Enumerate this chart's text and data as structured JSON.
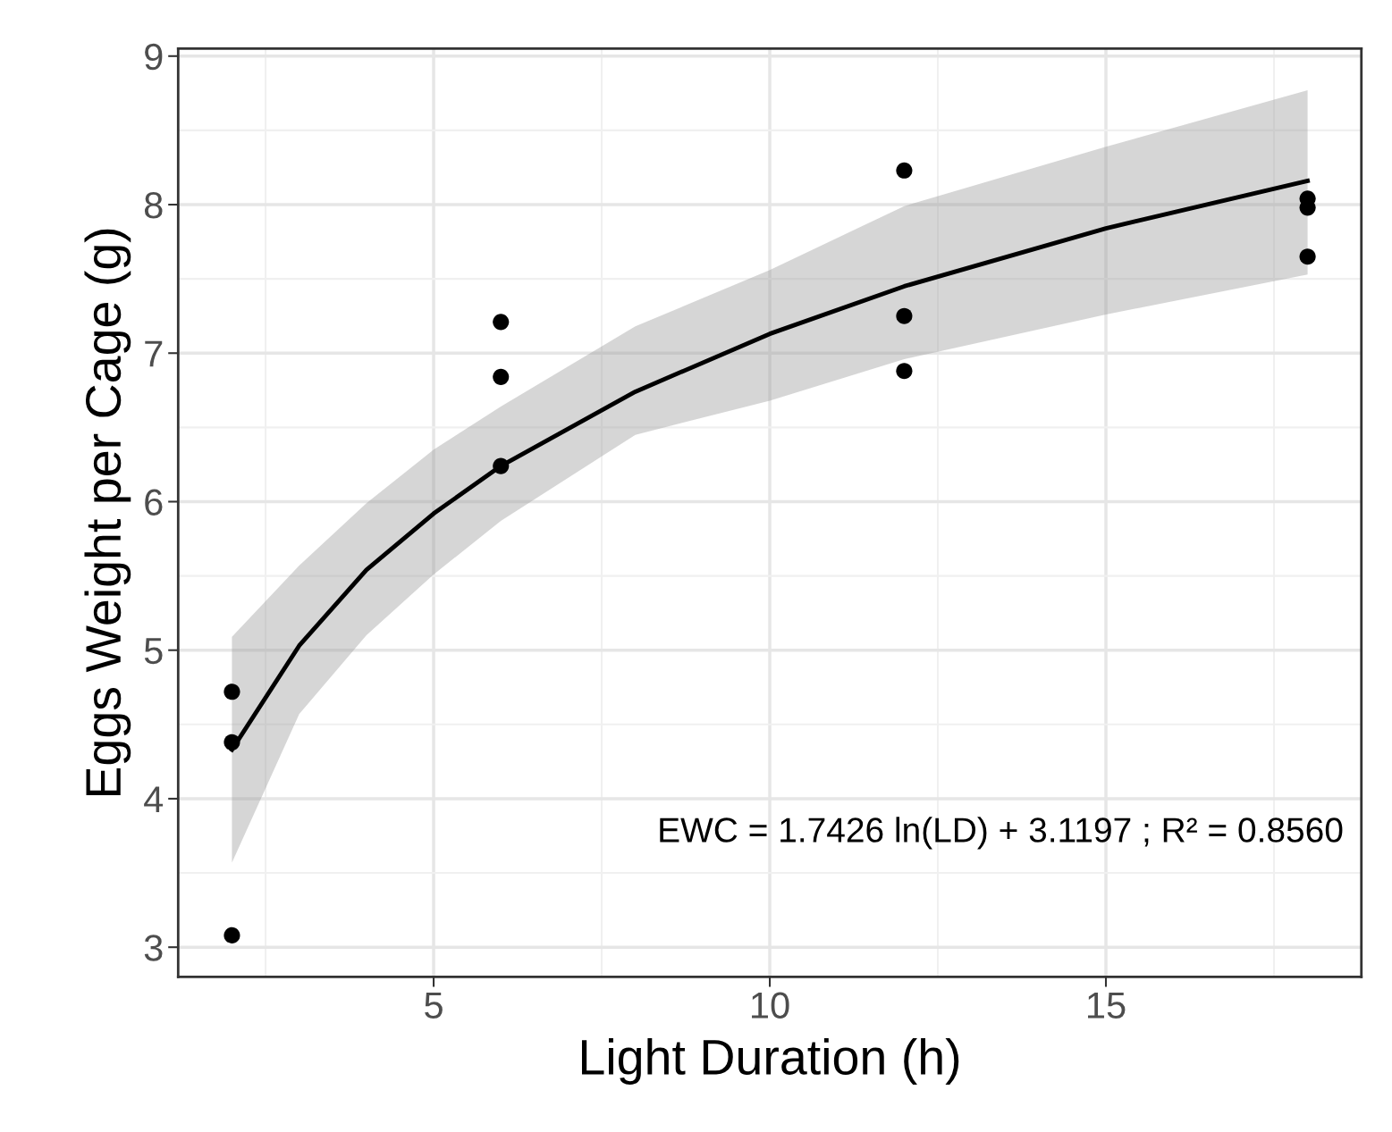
{
  "chart_data": {
    "type": "scatter",
    "xlabel": "Light Duration (h)",
    "ylabel": "Eggs Weight per Cage (g)",
    "xlim": [
      1.2,
      18.8
    ],
    "xticks": [
      5,
      10,
      15
    ],
    "ylim": [
      2.8,
      9.05
    ],
    "yticks": [
      3,
      4,
      5,
      6,
      7,
      8,
      9
    ],
    "grid": true,
    "series": [
      {
        "color": "#000000",
        "marker": "circle",
        "x": [
          2,
          2,
          2,
          6,
          6,
          6,
          12,
          12,
          12,
          18,
          18,
          18
        ],
        "values": [
          4.72,
          4.38,
          3.08,
          7.21,
          6.84,
          6.24,
          8.23,
          7.25,
          6.88,
          8.04,
          7.98,
          7.65
        ]
      },
      {
        "type": "line",
        "color": "#000000",
        "line_style": "solid",
        "x": [
          2,
          3,
          4,
          5,
          6,
          8,
          10,
          12,
          15,
          18
        ],
        "values": [
          4.33,
          5.03,
          5.54,
          5.92,
          6.24,
          6.74,
          7.13,
          7.45,
          7.84,
          8.16
        ],
        "lower": [
          3.57,
          4.57,
          5.1,
          5.51,
          5.87,
          6.45,
          6.68,
          6.96,
          7.26,
          7.53
        ],
        "upper": [
          5.09,
          5.57,
          5.99,
          6.35,
          6.64,
          7.18,
          7.56,
          7.99,
          8.39,
          8.77
        ]
      }
    ],
    "annotations": [
      "EWC = 1.7426 ln(LD) + 3.1197 ; R² = 0.8560"
    ]
  }
}
